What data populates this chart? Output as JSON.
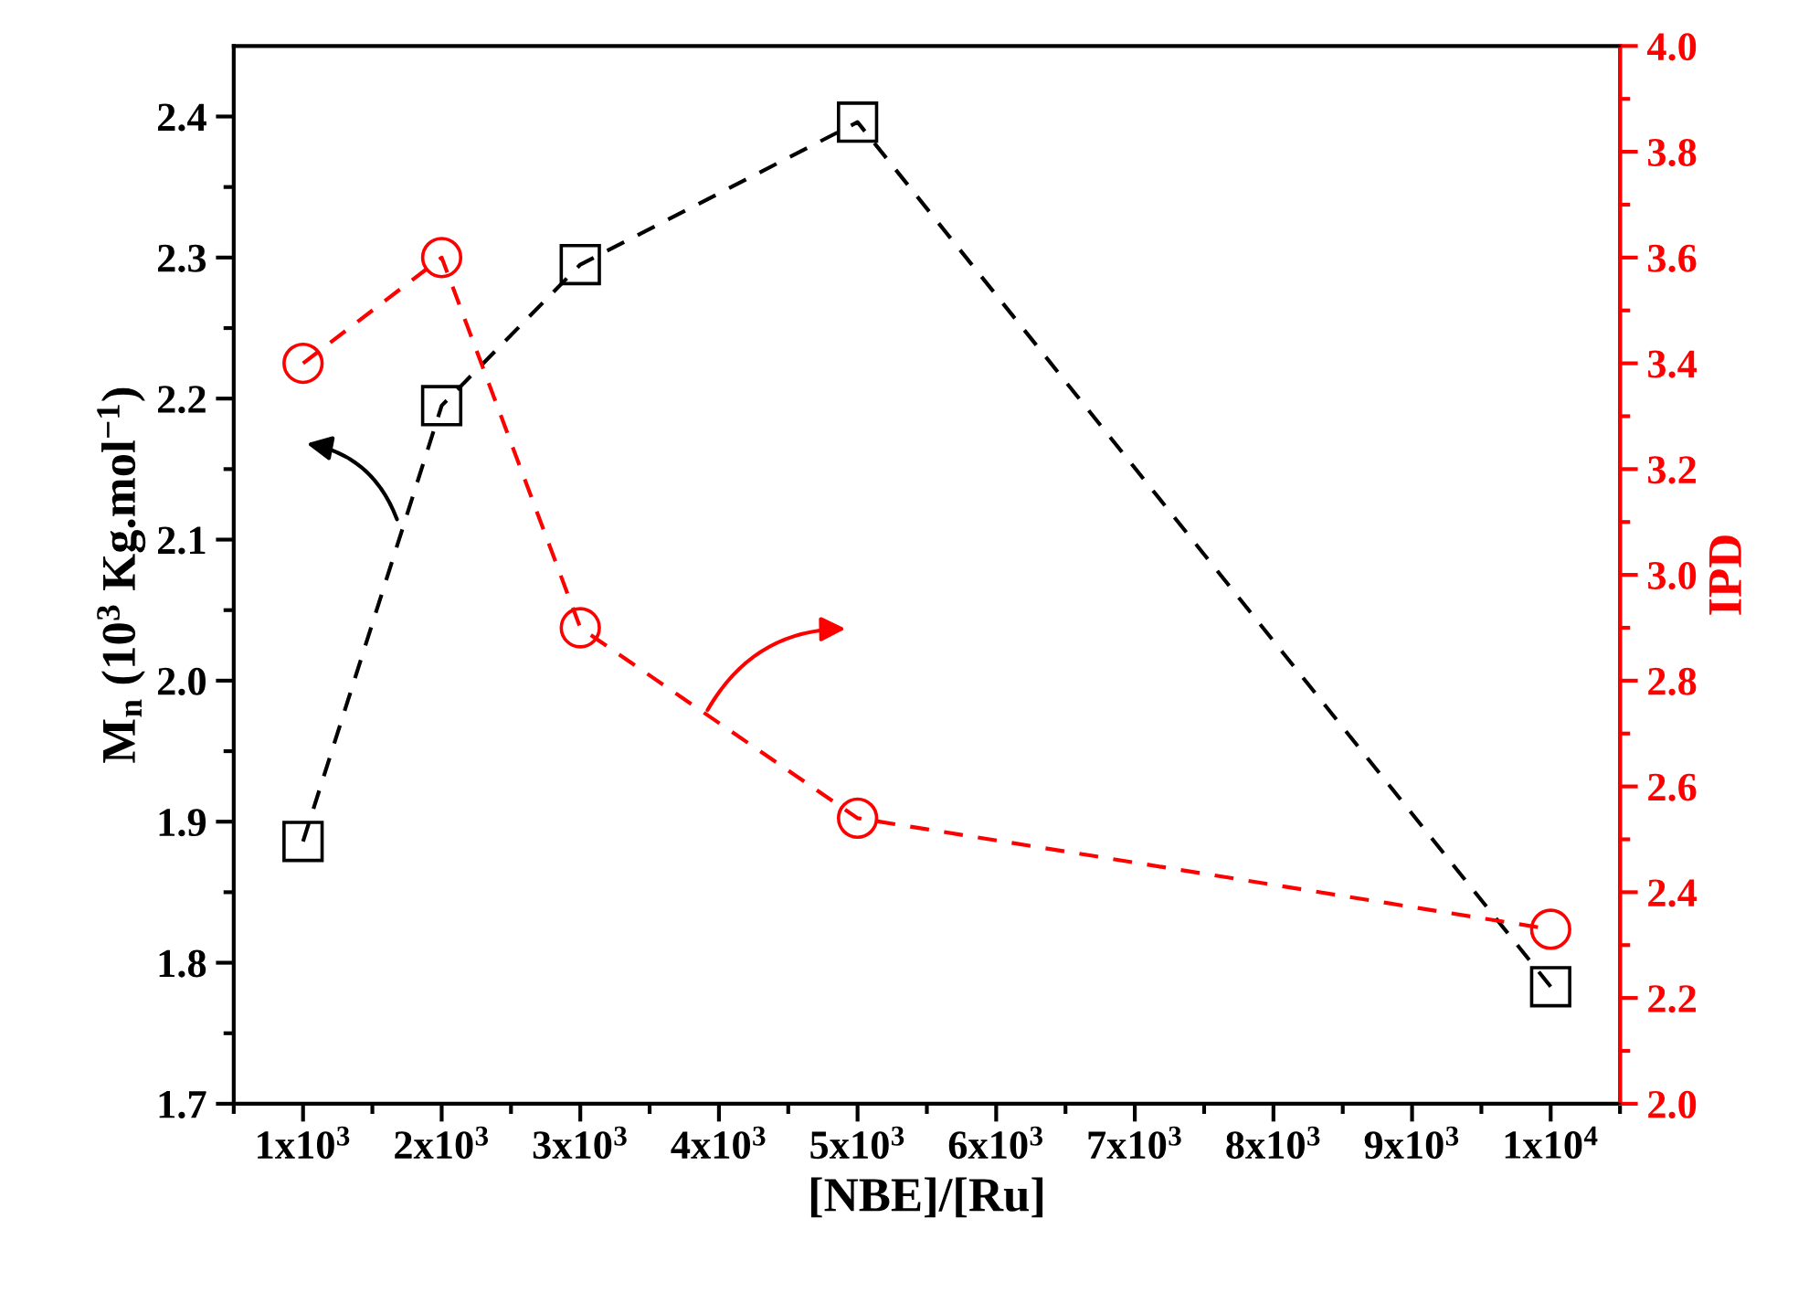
{
  "chart_data": {
    "type": "line",
    "xlabel": "[NBE]/[Ru]",
    "ylabel": "M$_{n}$ (10$^{3}$ Kg.mol$^{−1}$)",
    "y2label": "IPD",
    "x": [
      1000,
      2000,
      3000,
      5000,
      10000
    ],
    "series": [
      {
        "color": "#000000",
        "marker": "square",
        "line_style": "dashed",
        "values": [
          1.886,
          2.195,
          2.295,
          2.396,
          1.783
        ]
      },
      {
        "color": "#ff0000",
        "marker": "circle",
        "line_style": "dashed",
        "axis": "y2",
        "values": [
          3.4,
          3.6,
          2.9,
          2.54,
          2.33
        ]
      }
    ],
    "xlim": [
      500,
      10500
    ],
    "xticks": [
      {
        "value": 500,
        "label": null
      },
      {
        "value": 1000,
        "label": "1x10$^{3}$"
      },
      {
        "value": 1500,
        "label": null
      },
      {
        "value": 2000,
        "label": "2x10$^{3}$"
      },
      {
        "value": 2500,
        "label": null
      },
      {
        "value": 3000,
        "label": "3x10$^{3}$"
      },
      {
        "value": 3500,
        "label": null
      },
      {
        "value": 4000,
        "label": "4x10$^{3}$"
      },
      {
        "value": 4500,
        "label": null
      },
      {
        "value": 5000,
        "label": "5x10$^{3}$"
      },
      {
        "value": 5500,
        "label": null
      },
      {
        "value": 6000,
        "label": "6x10$^{3}$"
      },
      {
        "value": 6500,
        "label": null
      },
      {
        "value": 7000,
        "label": "7x10$^{3}$"
      },
      {
        "value": 7500,
        "label": null
      },
      {
        "value": 8000,
        "label": "8x10$^{3}$"
      },
      {
        "value": 8500,
        "label": null
      },
      {
        "value": 9000,
        "label": "9x10$^{3}$"
      },
      {
        "value": 9500,
        "label": null
      },
      {
        "value": 10000,
        "label": "1x10$^{4}$"
      },
      {
        "value": 10500,
        "label": null
      }
    ],
    "ylim": [
      1.7,
      2.45
    ],
    "yticks": [
      1.7,
      {
        "value": 1.75,
        "label": null
      },
      1.8,
      {
        "value": 1.85,
        "label": null
      },
      1.9,
      {
        "value": 1.95,
        "label": null
      },
      {
        "value": 2.0,
        "label": "2.0"
      },
      {
        "value": 2.05,
        "label": null
      },
      2.1,
      {
        "value": 2.15,
        "label": null
      },
      2.2,
      {
        "value": 2.25,
        "label": null
      },
      2.3,
      {
        "value": 2.35,
        "label": null
      },
      2.4
    ],
    "y2lim": [
      2.0,
      4.0
    ],
    "y2ticks": [
      {
        "value": 2.0,
        "label": "2.0"
      },
      {
        "value": 2.1,
        "label": null
      },
      2.2,
      {
        "value": 2.3,
        "label": null
      },
      2.4,
      {
        "value": 2.5,
        "label": null
      },
      2.6,
      {
        "value": 2.7,
        "label": null
      },
      2.8,
      {
        "value": 2.9,
        "label": null
      },
      {
        "value": 3.0,
        "label": "3.0"
      },
      {
        "value": 3.1,
        "label": null
      },
      3.2,
      {
        "value": 3.3,
        "label": null
      },
      3.4,
      {
        "value": 3.5,
        "label": null
      },
      3.6,
      {
        "value": 3.7,
        "label": null
      },
      3.8,
      {
        "value": 3.9,
        "label": null
      },
      {
        "value": 4.0,
        "label": "4.0"
      }
    ],
    "grid": false,
    "legend": false
  }
}
